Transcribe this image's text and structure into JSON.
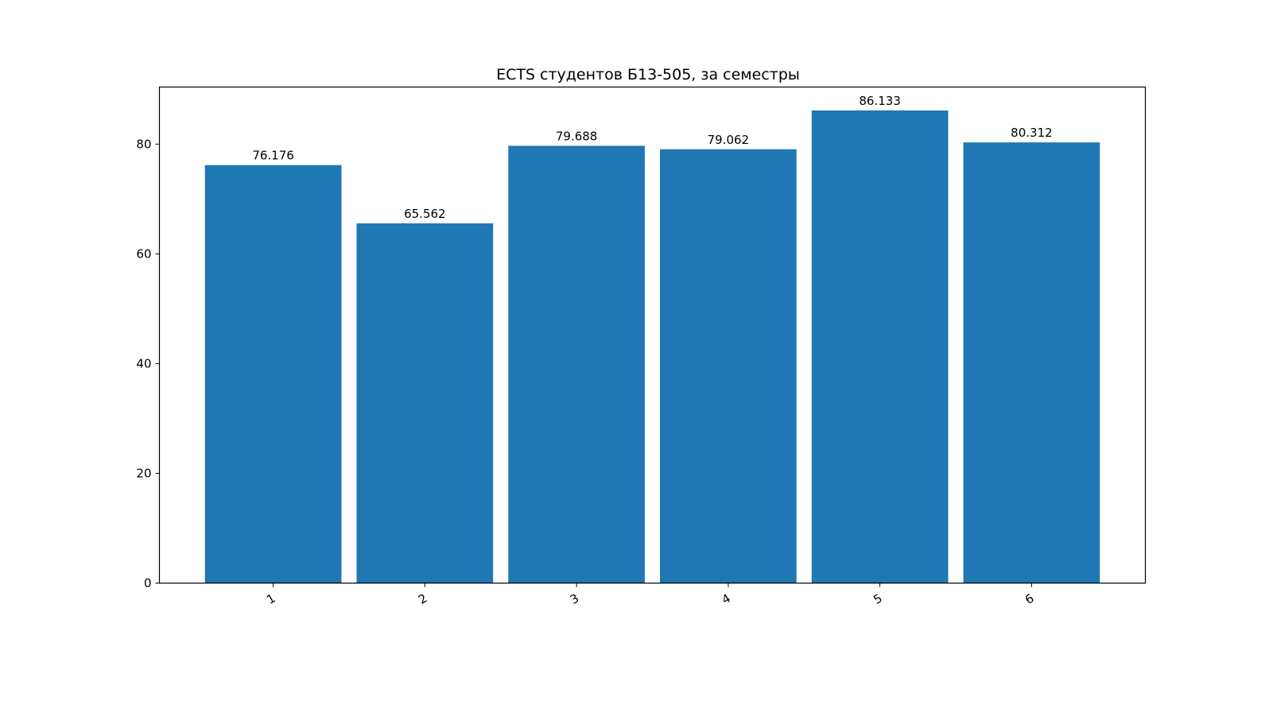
{
  "chart_data": {
    "type": "bar",
    "title": "ECTS студентов Б13-505, за семестры",
    "xlabel": "",
    "ylabel": "",
    "categories": [
      "1",
      "2",
      "3",
      "4",
      "5",
      "6"
    ],
    "values": [
      76.176,
      65.562,
      79.688,
      79.062,
      86.133,
      80.312
    ],
    "value_labels": [
      "76.176",
      "65.562",
      "79.688",
      "79.062",
      "86.133",
      "80.312"
    ],
    "ylim": [
      0,
      90.4
    ],
    "yticks": [
      0,
      20,
      40,
      60,
      80
    ],
    "grid": false,
    "legend": false,
    "x_tick_rotation_deg": 30,
    "bar_color": "#1f77b4"
  }
}
